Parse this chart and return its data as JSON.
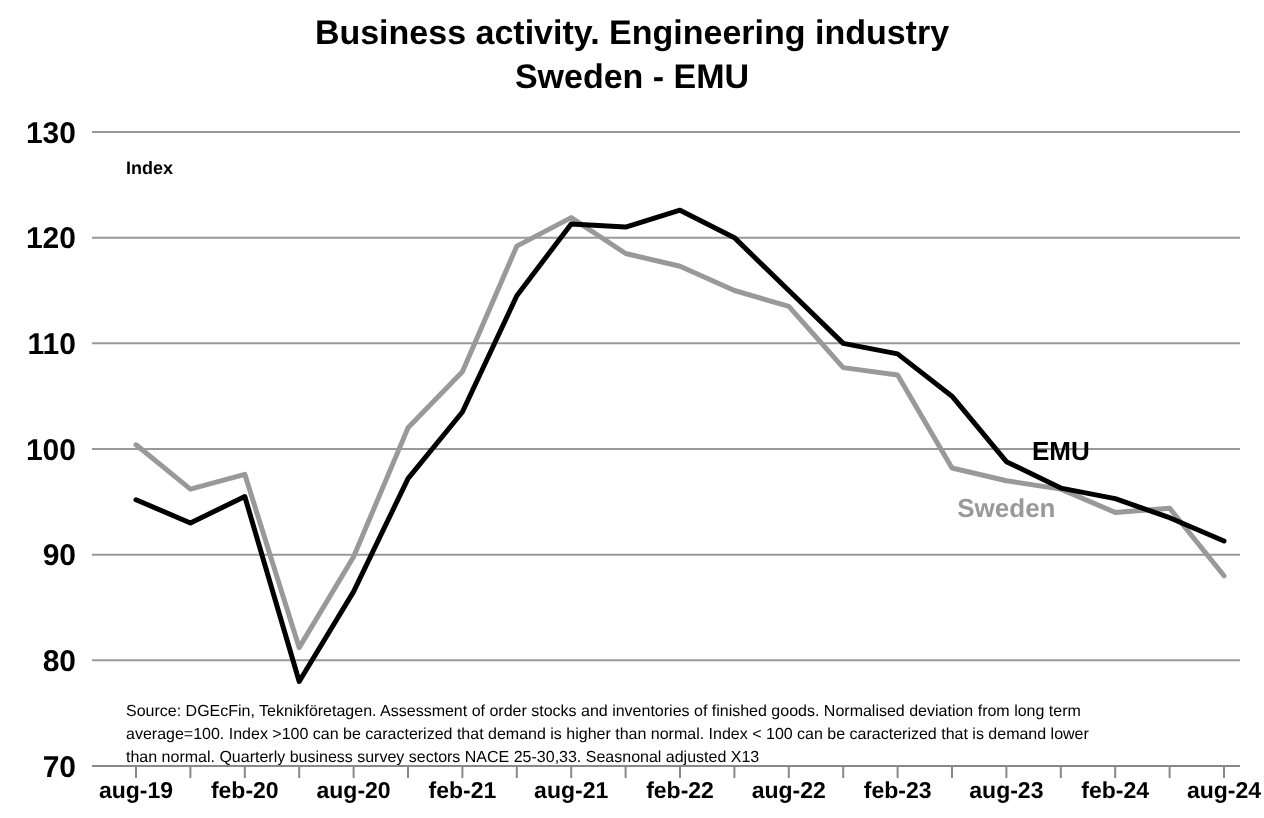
{
  "chart_data": {
    "type": "line",
    "title": "Business activity. Engineering industry\nSweden - EMU",
    "ylabel": "Index",
    "categories": [
      "aug-19",
      null,
      "feb-20",
      null,
      "aug-20",
      null,
      "feb-21",
      null,
      "aug-21",
      null,
      "feb-22",
      null,
      "aug-22",
      null,
      "feb-23",
      null,
      "aug-23",
      null,
      "feb-24",
      null,
      "aug-24"
    ],
    "series": [
      {
        "name": "Sweden",
        "color": "#999999",
        "values": [
          100.4,
          96.2,
          97.6,
          81.2,
          89.8,
          102,
          107.3,
          119.2,
          121.9,
          118.5,
          117.3,
          115,
          113.5,
          107.7,
          107,
          98.2,
          97,
          96.2,
          94,
          94.4,
          88
        ]
      },
      {
        "name": "EMU",
        "color": "#000000",
        "values": [
          95.2,
          93,
          95.5,
          78,
          86.5,
          97.2,
          103.5,
          114.5,
          121.3,
          121,
          122.6,
          120,
          115,
          110,
          109,
          105,
          98.8,
          96.3,
          95.3,
          93.5,
          91.3
        ]
      }
    ],
    "ylim": [
      70,
      130
    ],
    "yticks": [
      70,
      80,
      90,
      100,
      110,
      120,
      130
    ],
    "grid": "y",
    "legend": false,
    "marker": "none",
    "line_style": "solid",
    "annotations": [
      "Source: DGEcFin, Teknikföretagen. Assessment of order stocks and inventories of finished goods. Normalised deviation from long term average=100. Index >100 can be caracterized that demand is higher than normal. Index < 100 can be caracterized that is demand lower than normal. Quarterly business survey sectors NACE 25-30,33. Seasnonal adjusted X13"
    ]
  }
}
